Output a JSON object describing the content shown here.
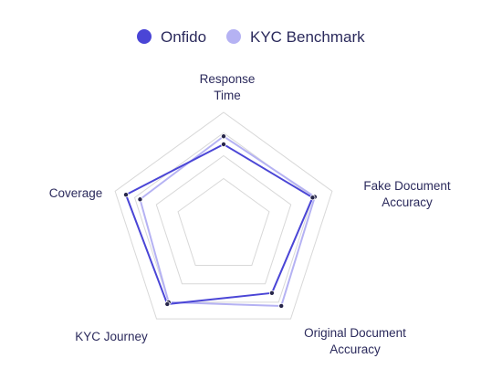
{
  "chart_data": {
    "type": "radar",
    "title": "",
    "axes": [
      [
        "Response",
        "Time"
      ],
      [
        "Fake Document",
        "Accuracy"
      ],
      [
        "Original Document",
        "Accuracy"
      ],
      [
        "KYC Journey"
      ],
      [
        "Coverage"
      ]
    ],
    "scale": {
      "min": 0,
      "max": 100,
      "rings": 4
    },
    "grid": true,
    "legend_position": "top-center",
    "series": [
      {
        "name": "Onfido",
        "color": "#4a45d6",
        "values": [
          72,
          82,
          72,
          84,
          90
        ]
      },
      {
        "name": "KYC Benchmark",
        "color": "#b5b2f3",
        "values": [
          79,
          84,
          86,
          82,
          77
        ]
      }
    ],
    "colors": {
      "grid": "#d8d8d8",
      "point": "#26254a",
      "text": "#2b2a5c"
    }
  }
}
